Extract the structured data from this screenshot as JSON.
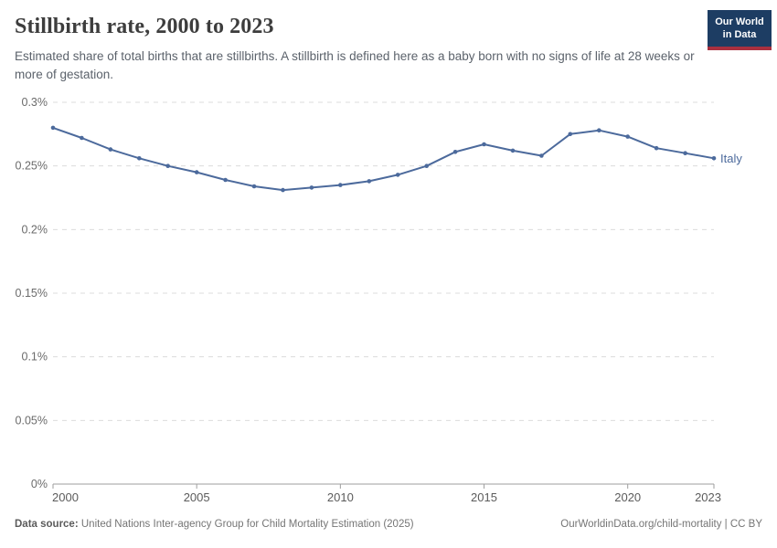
{
  "header": {
    "title": "Stillbirth rate, 2000 to 2023",
    "subtitle": "Estimated share of total births that are stillbirths. A stillbirth is defined here as a baby born with no signs of life at 28 weeks or more of gestation."
  },
  "logo": {
    "line1": "Our World",
    "line2": "in Data",
    "bg_color": "#1d3d63",
    "accent_color": "#a9303f"
  },
  "chart_data": {
    "type": "line",
    "title": "Stillbirth rate, 2000 to 2023",
    "xlabel": "",
    "ylabel": "",
    "unit": "%",
    "x": [
      2000,
      2001,
      2002,
      2003,
      2004,
      2005,
      2006,
      2007,
      2008,
      2009,
      2010,
      2011,
      2012,
      2013,
      2014,
      2015,
      2016,
      2017,
      2018,
      2019,
      2020,
      2021,
      2022,
      2023
    ],
    "series": [
      {
        "name": "Italy",
        "end_label": "Italy",
        "color": "#4C6A9C",
        "values": [
          0.28,
          0.272,
          0.263,
          0.256,
          0.25,
          0.245,
          0.239,
          0.234,
          0.231,
          0.233,
          0.235,
          0.238,
          0.243,
          0.25,
          0.261,
          0.267,
          0.262,
          0.258,
          0.275,
          0.278,
          0.273,
          0.264,
          0.26,
          0.256
        ]
      }
    ],
    "ylim": [
      0,
      0.3
    ],
    "yticks": [
      0,
      0.05,
      0.1,
      0.15,
      0.2,
      0.25,
      0.3
    ],
    "ytick_labels": [
      "0%",
      "0.05%",
      "0.1%",
      "0.15%",
      "0.2%",
      "0.25%",
      "0.3%"
    ],
    "xticks": [
      2000,
      2005,
      2010,
      2015,
      2020,
      2023
    ],
    "xtick_labels": [
      "2000",
      "2005",
      "2010",
      "2015",
      "2020",
      "2023"
    ],
    "grid": "horizontal-dashed",
    "legend_position": "end-of-line",
    "colors": {
      "grid": "#dcdcdc",
      "axis": "#9e9e9e",
      "tick_label_y": "#6b6b6b",
      "tick_label_x": "#5b5b5b"
    }
  },
  "footer": {
    "source_label": "Data source:",
    "source_text": "United Nations Inter-agency Group for Child Mortality Estimation (2025)",
    "link_text": "OurWorldinData.org/child-mortality | CC BY"
  }
}
